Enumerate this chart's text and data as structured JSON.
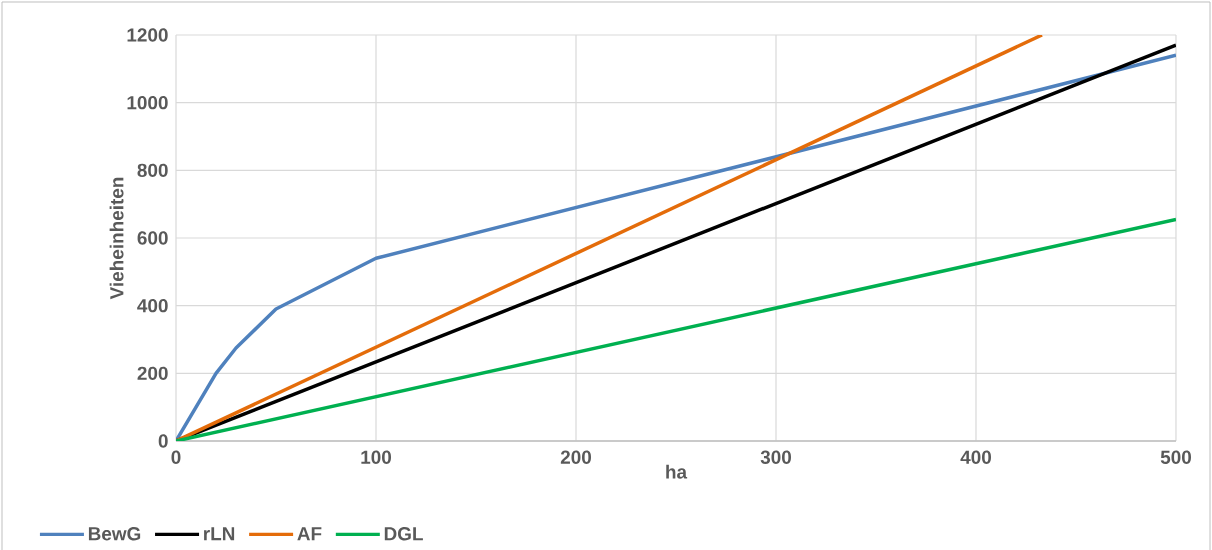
{
  "chart_data": {
    "type": "line",
    "xlabel": "ha",
    "ylabel": "Vieheinheiten",
    "series": [
      {
        "name": "BewG",
        "color": "#4f81bd",
        "x": [
          0,
          20,
          30,
          50,
          100,
          500
        ],
        "values": [
          0,
          200,
          275,
          390,
          540,
          1140
        ]
      },
      {
        "name": "rLN",
        "color": "#000000",
        "x": [
          0,
          500
        ],
        "values": [
          0,
          1170
        ]
      },
      {
        "name": "AF",
        "color": "#e46c0a",
        "x": [
          0,
          433
        ],
        "values": [
          0,
          1200
        ]
      },
      {
        "name": "DGL",
        "color": "#00b050",
        "x": [
          0,
          500
        ],
        "values": [
          0,
          655
        ]
      }
    ],
    "xlim": [
      0,
      500
    ],
    "ylim": [
      0,
      1200
    ],
    "xticks": [
      0,
      100,
      200,
      300,
      400,
      500
    ],
    "yticks": [
      0,
      200,
      400,
      600,
      800,
      1000,
      1200
    ],
    "grid": true,
    "legend": "bottom"
  }
}
